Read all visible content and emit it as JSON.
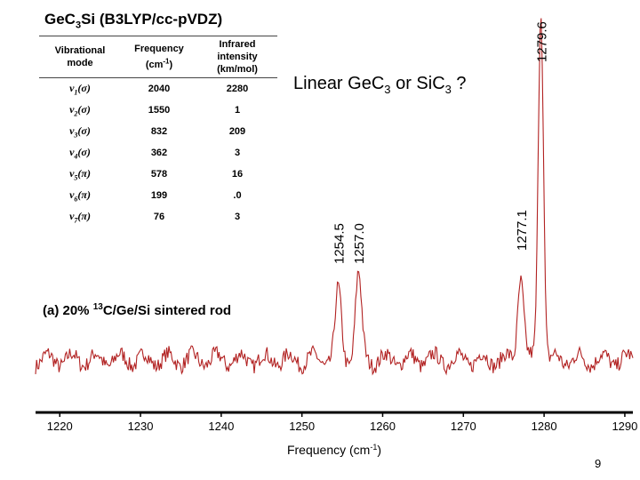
{
  "slide": {
    "title_main": "GeC",
    "title_sub": "3",
    "title_rest": "Si (B3LYP/cc-pVDZ)",
    "question_main": "Linear GeC",
    "question_sub1": "3",
    "question_mid": " or SiC",
    "question_sub2": "3",
    "question_end": " ?",
    "sample_pre": "(a) 20% ",
    "sample_sup": "13",
    "sample_post": "C/Ge/Si sintered  rod",
    "page_number": "9"
  },
  "table": {
    "headers": [
      [
        "Vibrational",
        "mode"
      ],
      [
        "Frequency",
        "(cm-1)"
      ],
      [
        "Infrared",
        "intensity",
        "(km/mol)"
      ]
    ],
    "rows": [
      {
        "mode_nu": "ν",
        "mode_idx": "1",
        "mode_sym": "(σ)",
        "frequency": "2040",
        "intensity": "2280"
      },
      {
        "mode_nu": "ν",
        "mode_idx": "2",
        "mode_sym": "(σ)",
        "frequency": "1550",
        "intensity": "1"
      },
      {
        "mode_nu": "ν",
        "mode_idx": "3",
        "mode_sym": "(σ)",
        "frequency": "832",
        "intensity": "209"
      },
      {
        "mode_nu": "ν",
        "mode_idx": "4",
        "mode_sym": "(σ)",
        "frequency": "362",
        "intensity": "3"
      },
      {
        "mode_nu": "ν",
        "mode_idx": "5",
        "mode_sym": "(π)",
        "frequency": "578",
        "intensity": "16"
      },
      {
        "mode_nu": "ν",
        "mode_idx": "6",
        "mode_sym": "(π)",
        "frequency": "199",
        "intensity": ".0"
      },
      {
        "mode_nu": "ν",
        "mode_idx": "7",
        "mode_sym": "(π)",
        "frequency": "76",
        "intensity": "3"
      }
    ]
  },
  "chart_data": {
    "type": "line",
    "title": "",
    "xlabel": "Frequency (cm-1)",
    "ylabel": "",
    "xlim": [
      1217,
      1291
    ],
    "x_ticks": [
      1220,
      1230,
      1240,
      1250,
      1260,
      1270,
      1280,
      1290
    ],
    "y_axis_visible": false,
    "grid": false,
    "line_color": "#b22222",
    "baseline_level": 0.08,
    "peaks": [
      {
        "label": "1254.5",
        "x": 1254.5,
        "height": 0.4
      },
      {
        "label": "1257.0",
        "x": 1257.0,
        "height": 0.5
      },
      {
        "label": "1277.1",
        "x": 1277.1,
        "height": 0.5
      },
      {
        "label": "1279.6",
        "x": 1279.6,
        "height": 2.1
      }
    ]
  }
}
